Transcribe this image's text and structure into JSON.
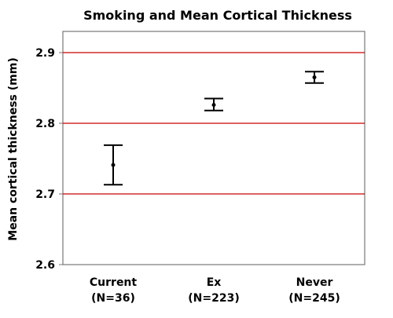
{
  "chart_data": {
    "type": "errorbar",
    "title": "Smoking and Mean Cortical Thickness",
    "xlabel": "",
    "ylabel": "Mean cortical thickness (mm)",
    "ylim": [
      2.6,
      2.93
    ],
    "yticks": [
      "2.6",
      "2.7",
      "2.8",
      "2.9"
    ],
    "grid": "horizontal red lines at y ticks",
    "categories": [
      {
        "name": "Current",
        "n": "(N=36)"
      },
      {
        "name": "Ex",
        "n": "(N=223)"
      },
      {
        "name": "Never",
        "n": "(N=245)"
      }
    ],
    "series": [
      {
        "mean": [
          2.741,
          2.826,
          2.865
        ],
        "lower": [
          2.713,
          2.818,
          2.857
        ],
        "upper": [
          2.769,
          2.835,
          2.873
        ]
      }
    ],
    "colors": {
      "grid": "#cc0000",
      "marks": "#000000",
      "frame": "#777777"
    }
  }
}
